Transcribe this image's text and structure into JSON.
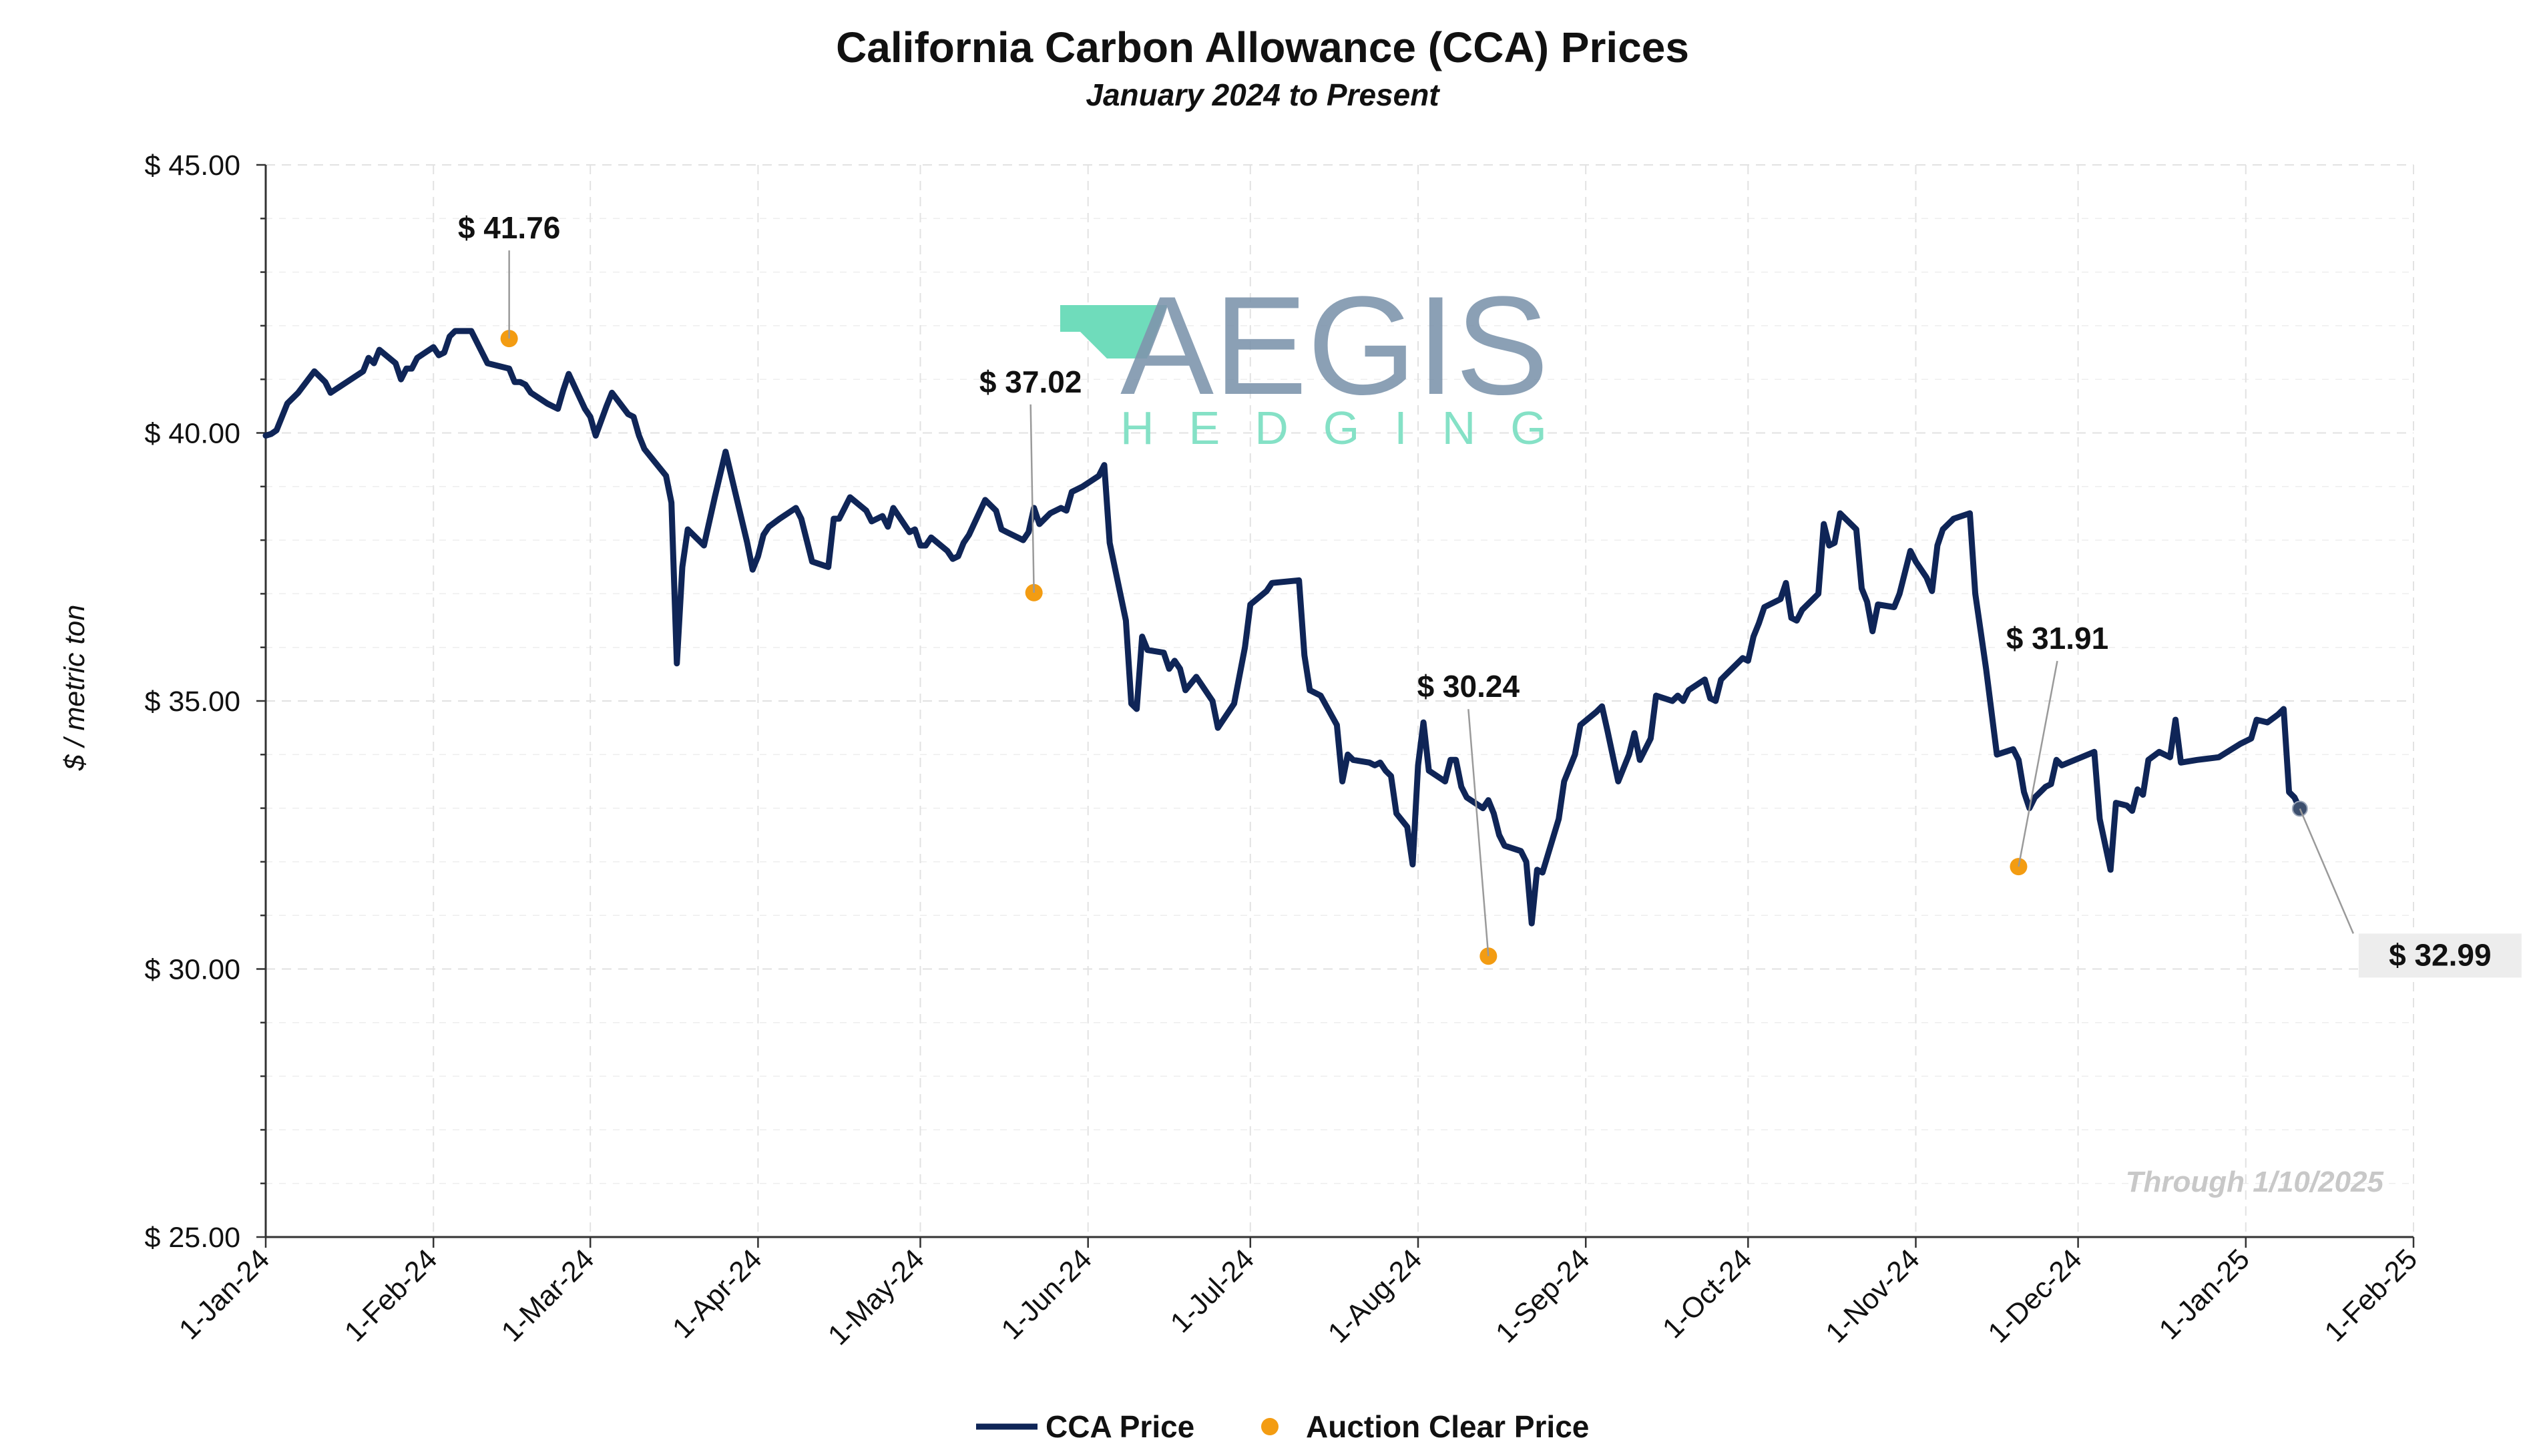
{
  "chart_data": {
    "type": "line",
    "title": "California Carbon Allowance (CCA) Prices",
    "subtitle": "January 2024 to Present",
    "ylabel": "$ / metric ton",
    "xlabel": "",
    "ylim": [
      25,
      45
    ],
    "xlim": [
      "2024-01-01",
      "2025-02-01"
    ],
    "yticks": [
      25,
      30,
      35,
      40,
      45
    ],
    "ytick_labels": [
      "$ 25.00",
      "$ 30.00",
      "$ 35.00",
      "$ 40.00",
      "$ 45.00"
    ],
    "xticks": [
      "2024-01-01",
      "2024-02-01",
      "2024-03-01",
      "2024-04-01",
      "2024-05-01",
      "2024-06-01",
      "2024-07-01",
      "2024-08-01",
      "2024-09-01",
      "2024-10-01",
      "2024-11-01",
      "2024-12-01",
      "2025-01-01",
      "2025-02-01"
    ],
    "xtick_labels": [
      "1-Jan-24",
      "1-Feb-24",
      "1-Mar-24",
      "1-Apr-24",
      "1-May-24",
      "1-Jun-24",
      "1-Jul-24",
      "1-Aug-24",
      "1-Sep-24",
      "1-Oct-24",
      "1-Nov-24",
      "1-Dec-24",
      "1-Jan-25",
      "1-Feb-25"
    ],
    "grid": true,
    "legend_position": "bottom-center",
    "note": "Through 1/10/2025",
    "series": [
      {
        "name": "CCA Price",
        "color": "#0f2557",
        "points": [
          [
            "2024-01-01",
            39.95
          ],
          [
            "2024-01-02",
            39.98
          ],
          [
            "2024-01-03",
            40.05
          ],
          [
            "2024-01-05",
            40.55
          ],
          [
            "2024-01-07",
            40.75
          ],
          [
            "2024-01-10",
            41.15
          ],
          [
            "2024-01-12",
            40.95
          ],
          [
            "2024-01-13",
            40.75
          ],
          [
            "2024-01-16",
            40.95
          ],
          [
            "2024-01-19",
            41.15
          ],
          [
            "2024-01-20",
            41.4
          ],
          [
            "2024-01-21",
            41.3
          ],
          [
            "2024-01-22",
            41.55
          ],
          [
            "2024-01-25",
            41.3
          ],
          [
            "2024-01-26",
            41.0
          ],
          [
            "2024-01-27",
            41.2
          ],
          [
            "2024-01-28",
            41.2
          ],
          [
            "2024-01-29",
            41.4
          ],
          [
            "2024-02-01",
            41.6
          ],
          [
            "2024-02-02",
            41.45
          ],
          [
            "2024-02-03",
            41.5
          ],
          [
            "2024-02-04",
            41.8
          ],
          [
            "2024-02-05",
            41.9
          ],
          [
            "2024-02-08",
            41.9
          ],
          [
            "2024-02-11",
            41.3
          ],
          [
            "2024-02-15",
            41.2
          ],
          [
            "2024-02-16",
            40.95
          ],
          [
            "2024-02-17",
            40.95
          ],
          [
            "2024-02-18",
            40.9
          ],
          [
            "2024-02-19",
            40.75
          ],
          [
            "2024-02-22",
            40.55
          ],
          [
            "2024-02-24",
            40.45
          ],
          [
            "2024-02-25",
            40.8
          ],
          [
            "2024-02-26",
            41.1
          ],
          [
            "2024-02-29",
            40.45
          ],
          [
            "2024-03-01",
            40.3
          ],
          [
            "2024-03-02",
            39.95
          ],
          [
            "2024-03-04",
            40.5
          ],
          [
            "2024-03-05",
            40.75
          ],
          [
            "2024-03-08",
            40.35
          ],
          [
            "2024-03-09",
            40.3
          ],
          [
            "2024-03-10",
            39.95
          ],
          [
            "2024-03-11",
            39.7
          ],
          [
            "2024-03-13",
            39.45
          ],
          [
            "2024-03-15",
            39.2
          ],
          [
            "2024-03-16",
            38.7
          ],
          [
            "2024-03-17",
            35.7
          ],
          [
            "2024-03-18",
            37.5
          ],
          [
            "2024-03-19",
            38.2
          ],
          [
            "2024-03-22",
            37.9
          ],
          [
            "2024-03-24",
            38.8
          ],
          [
            "2024-03-26",
            39.65
          ],
          [
            "2024-03-28",
            38.8
          ],
          [
            "2024-03-30",
            37.95
          ],
          [
            "2024-03-31",
            37.45
          ],
          [
            "2024-04-01",
            37.7
          ],
          [
            "2024-04-02",
            38.1
          ],
          [
            "2024-04-03",
            38.25
          ],
          [
            "2024-04-05",
            38.4
          ],
          [
            "2024-04-08",
            38.6
          ],
          [
            "2024-04-09",
            38.4
          ],
          [
            "2024-04-10",
            38.0
          ],
          [
            "2024-04-11",
            37.6
          ],
          [
            "2024-04-14",
            37.5
          ],
          [
            "2024-04-15",
            38.4
          ],
          [
            "2024-04-16",
            38.4
          ],
          [
            "2024-04-17",
            38.6
          ],
          [
            "2024-04-18",
            38.8
          ],
          [
            "2024-04-21",
            38.55
          ],
          [
            "2024-04-22",
            38.35
          ],
          [
            "2024-04-24",
            38.45
          ],
          [
            "2024-04-25",
            38.25
          ],
          [
            "2024-04-26",
            38.6
          ],
          [
            "2024-04-29",
            38.15
          ],
          [
            "2024-04-30",
            38.2
          ],
          [
            "2024-05-01",
            37.9
          ],
          [
            "2024-05-02",
            37.9
          ],
          [
            "2024-05-03",
            38.05
          ],
          [
            "2024-05-06",
            37.8
          ],
          [
            "2024-05-07",
            37.65
          ],
          [
            "2024-05-08",
            37.7
          ],
          [
            "2024-05-09",
            37.95
          ],
          [
            "2024-05-10",
            38.1
          ],
          [
            "2024-05-13",
            38.75
          ],
          [
            "2024-05-15",
            38.55
          ],
          [
            "2024-05-16",
            38.2
          ],
          [
            "2024-05-17",
            38.15
          ],
          [
            "2024-05-20",
            38.0
          ],
          [
            "2024-05-21",
            38.15
          ],
          [
            "2024-05-22",
            38.6
          ],
          [
            "2024-05-23",
            38.3
          ],
          [
            "2024-05-25",
            38.5
          ],
          [
            "2024-05-27",
            38.6
          ],
          [
            "2024-05-28",
            38.55
          ],
          [
            "2024-05-29",
            38.9
          ],
          [
            "2024-05-31",
            39.0
          ],
          [
            "2024-06-03",
            39.2
          ],
          [
            "2024-06-04",
            39.4
          ],
          [
            "2024-06-05",
            37.95
          ],
          [
            "2024-06-08",
            36.5
          ],
          [
            "2024-06-09",
            34.95
          ],
          [
            "2024-06-10",
            34.85
          ],
          [
            "2024-06-11",
            36.2
          ],
          [
            "2024-06-12",
            35.95
          ],
          [
            "2024-06-15",
            35.9
          ],
          [
            "2024-06-16",
            35.6
          ],
          [
            "2024-06-17",
            35.75
          ],
          [
            "2024-06-18",
            35.6
          ],
          [
            "2024-06-19",
            35.2
          ],
          [
            "2024-06-21",
            35.45
          ],
          [
            "2024-06-22",
            35.3
          ],
          [
            "2024-06-24",
            35.0
          ],
          [
            "2024-06-25",
            34.5
          ],
          [
            "2024-06-28",
            34.95
          ],
          [
            "2024-06-30",
            36.0
          ],
          [
            "2024-07-01",
            36.8
          ],
          [
            "2024-07-04",
            37.05
          ],
          [
            "2024-07-05",
            37.2
          ],
          [
            "2024-07-10",
            37.25
          ],
          [
            "2024-07-11",
            35.85
          ],
          [
            "2024-07-12",
            35.2
          ],
          [
            "2024-07-14",
            35.1
          ],
          [
            "2024-07-17",
            34.55
          ],
          [
            "2024-07-18",
            33.5
          ],
          [
            "2024-07-19",
            34.0
          ],
          [
            "2024-07-20",
            33.9
          ],
          [
            "2024-07-23",
            33.85
          ],
          [
            "2024-07-24",
            33.8
          ],
          [
            "2024-07-25",
            33.85
          ],
          [
            "2024-07-26",
            33.7
          ],
          [
            "2024-07-27",
            33.6
          ],
          [
            "2024-07-28",
            32.9
          ],
          [
            "2024-07-30",
            32.65
          ],
          [
            "2024-07-31",
            31.95
          ],
          [
            "2024-08-01",
            33.8
          ],
          [
            "2024-08-02",
            34.6
          ],
          [
            "2024-08-03",
            33.7
          ],
          [
            "2024-08-06",
            33.5
          ],
          [
            "2024-08-07",
            33.9
          ],
          [
            "2024-08-08",
            33.9
          ],
          [
            "2024-08-09",
            33.4
          ],
          [
            "2024-08-10",
            33.2
          ],
          [
            "2024-08-13",
            33.0
          ],
          [
            "2024-08-14",
            33.15
          ],
          [
            "2024-08-15",
            32.9
          ],
          [
            "2024-08-16",
            32.5
          ],
          [
            "2024-08-17",
            32.3
          ],
          [
            "2024-08-20",
            32.2
          ],
          [
            "2024-08-21",
            32.0
          ],
          [
            "2024-08-22",
            30.85
          ],
          [
            "2024-08-23",
            31.85
          ],
          [
            "2024-08-24",
            31.8
          ],
          [
            "2024-08-27",
            32.8
          ],
          [
            "2024-08-28",
            33.5
          ],
          [
            "2024-08-30",
            34.0
          ],
          [
            "2024-08-31",
            34.55
          ],
          [
            "2024-09-03",
            34.8
          ],
          [
            "2024-09-04",
            34.9
          ],
          [
            "2024-09-05",
            34.45
          ],
          [
            "2024-09-07",
            33.5
          ],
          [
            "2024-09-09",
            34.0
          ],
          [
            "2024-09-10",
            34.4
          ],
          [
            "2024-09-11",
            33.9
          ],
          [
            "2024-09-13",
            34.3
          ],
          [
            "2024-09-14",
            35.1
          ],
          [
            "2024-09-17",
            35.0
          ],
          [
            "2024-09-18",
            35.1
          ],
          [
            "2024-09-19",
            35.0
          ],
          [
            "2024-09-20",
            35.2
          ],
          [
            "2024-09-23",
            35.4
          ],
          [
            "2024-09-24",
            35.05
          ],
          [
            "2024-09-25",
            35.0
          ],
          [
            "2024-09-26",
            35.4
          ],
          [
            "2024-09-27",
            35.5
          ],
          [
            "2024-09-30",
            35.8
          ],
          [
            "2024-10-01",
            35.75
          ],
          [
            "2024-10-02",
            36.2
          ],
          [
            "2024-10-03",
            36.45
          ],
          [
            "2024-10-04",
            36.75
          ],
          [
            "2024-10-07",
            36.9
          ],
          [
            "2024-10-08",
            37.2
          ],
          [
            "2024-10-09",
            36.55
          ],
          [
            "2024-10-10",
            36.5
          ],
          [
            "2024-10-11",
            36.7
          ],
          [
            "2024-10-14",
            37.0
          ],
          [
            "2024-10-15",
            38.3
          ],
          [
            "2024-10-16",
            37.9
          ],
          [
            "2024-10-17",
            37.95
          ],
          [
            "2024-10-18",
            38.5
          ],
          [
            "2024-10-21",
            38.2
          ],
          [
            "2024-10-22",
            37.1
          ],
          [
            "2024-10-23",
            36.85
          ],
          [
            "2024-10-24",
            36.3
          ],
          [
            "2024-10-25",
            36.8
          ],
          [
            "2024-10-28",
            36.75
          ],
          [
            "2024-10-29",
            37.0
          ],
          [
            "2024-10-31",
            37.8
          ],
          [
            "2024-11-01",
            37.6
          ],
          [
            "2024-11-03",
            37.3
          ],
          [
            "2024-11-04",
            37.05
          ],
          [
            "2024-11-05",
            37.9
          ],
          [
            "2024-11-06",
            38.2
          ],
          [
            "2024-11-08",
            38.4
          ],
          [
            "2024-11-11",
            38.5
          ],
          [
            "2024-11-12",
            37.0
          ],
          [
            "2024-11-14",
            35.6
          ],
          [
            "2024-11-16",
            34.0
          ],
          [
            "2024-11-19",
            34.1
          ],
          [
            "2024-11-20",
            33.9
          ],
          [
            "2024-11-21",
            33.3
          ],
          [
            "2024-11-22",
            33.0
          ],
          [
            "2024-11-23",
            33.2
          ],
          [
            "2024-11-25",
            33.4
          ],
          [
            "2024-11-26",
            33.45
          ],
          [
            "2024-11-27",
            33.9
          ],
          [
            "2024-11-28",
            33.8
          ],
          [
            "2024-12-04",
            34.05
          ],
          [
            "2024-12-05",
            32.8
          ],
          [
            "2024-12-07",
            31.85
          ],
          [
            "2024-12-08",
            33.1
          ],
          [
            "2024-12-10",
            33.05
          ],
          [
            "2024-12-11",
            32.95
          ],
          [
            "2024-12-12",
            33.35
          ],
          [
            "2024-12-13",
            33.25
          ],
          [
            "2024-12-14",
            33.9
          ],
          [
            "2024-12-16",
            34.05
          ],
          [
            "2024-12-18",
            33.95
          ],
          [
            "2024-12-19",
            34.65
          ],
          [
            "2024-12-20",
            33.85
          ],
          [
            "2024-12-23",
            33.9
          ],
          [
            "2024-12-27",
            33.95
          ],
          [
            "2024-12-31",
            34.2
          ],
          [
            "2025-01-02",
            34.3
          ],
          [
            "2025-01-03",
            34.65
          ],
          [
            "2025-01-05",
            34.6
          ],
          [
            "2025-01-07",
            34.75
          ],
          [
            "2025-01-08",
            34.85
          ],
          [
            "2025-01-09",
            33.3
          ],
          [
            "2025-01-10",
            33.2
          ],
          [
            "2025-01-11",
            32.99
          ]
        ]
      },
      {
        "name": "Auction Clear Price",
        "color": "#f39c12",
        "points": [
          [
            "2024-02-15",
            41.76
          ],
          [
            "2024-05-22",
            37.02
          ],
          [
            "2024-08-14",
            30.24
          ],
          [
            "2024-11-20",
            31.91
          ]
        ]
      }
    ],
    "annotations": [
      {
        "text": "$ 41.76",
        "date": "2024-02-15",
        "value": 41.76
      },
      {
        "text": "$ 37.02",
        "date": "2024-05-22",
        "value": 37.02
      },
      {
        "text": "$ 30.24",
        "date": "2024-08-14",
        "value": 30.24
      },
      {
        "text": "$ 31.91",
        "date": "2024-11-20",
        "value": 31.91
      },
      {
        "text": "$ 32.99",
        "date": "2025-01-11",
        "value": 32.99
      }
    ]
  },
  "logo": {
    "main": "AEGIS",
    "sub": "HEDGING",
    "mark_color": "#6fdcbb",
    "text_color": "#7f96ad"
  }
}
